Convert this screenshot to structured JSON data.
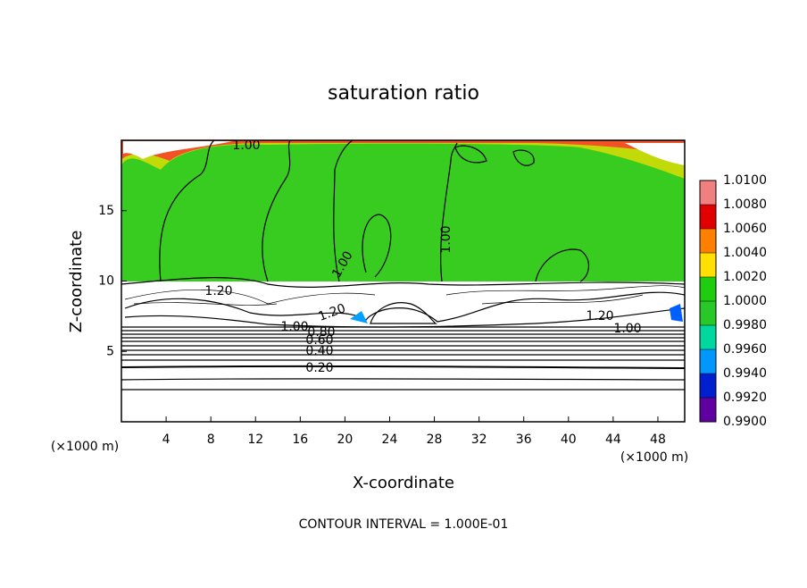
{
  "chart_data": {
    "type": "contour",
    "title": "saturation ratio",
    "xlabel": "X-coordinate",
    "ylabel": "Z-coordinate",
    "x_unit": "(×1000 m)",
    "y_unit": "(×1000 m)",
    "footer": "CONTOUR INTERVAL = 1.000E-01",
    "xlim": [
      0,
      50.4
    ],
    "ylim": [
      0,
      20
    ],
    "xticks": [
      4,
      8,
      12,
      16,
      20,
      24,
      28,
      32,
      36,
      40,
      44,
      48
    ],
    "yticks": [
      5,
      10,
      15
    ],
    "colorbar_ticks": [
      {
        "value": 1.01,
        "label": "1.0100"
      },
      {
        "value": 1.008,
        "label": "1.0080"
      },
      {
        "value": 1.006,
        "label": "1.0060"
      },
      {
        "value": 1.004,
        "label": "1.0040"
      },
      {
        "value": 1.002,
        "label": "1.0020"
      },
      {
        "value": 1.0,
        "label": "1.0000"
      },
      {
        "value": 0.998,
        "label": "0.9980"
      },
      {
        "value": 0.996,
        "label": "0.9960"
      },
      {
        "value": 0.994,
        "label": "0.9940"
      },
      {
        "value": 0.992,
        "label": "0.9920"
      },
      {
        "value": 0.99,
        "label": "0.9900"
      }
    ],
    "colorbar_colors": [
      "#f08080",
      "#e00000",
      "#ff8000",
      "#ffe000",
      "#20cc10",
      "#28c828",
      "#00d8a0",
      "#0098ff",
      "#0020d0",
      "#6000a0"
    ],
    "contour_labels": [
      "1.00",
      "1.00",
      "1.00",
      "1.20",
      "1.20",
      "1.20",
      "1.00",
      "1.00",
      "0.80",
      "0.60",
      "0.40",
      "0.20"
    ]
  }
}
